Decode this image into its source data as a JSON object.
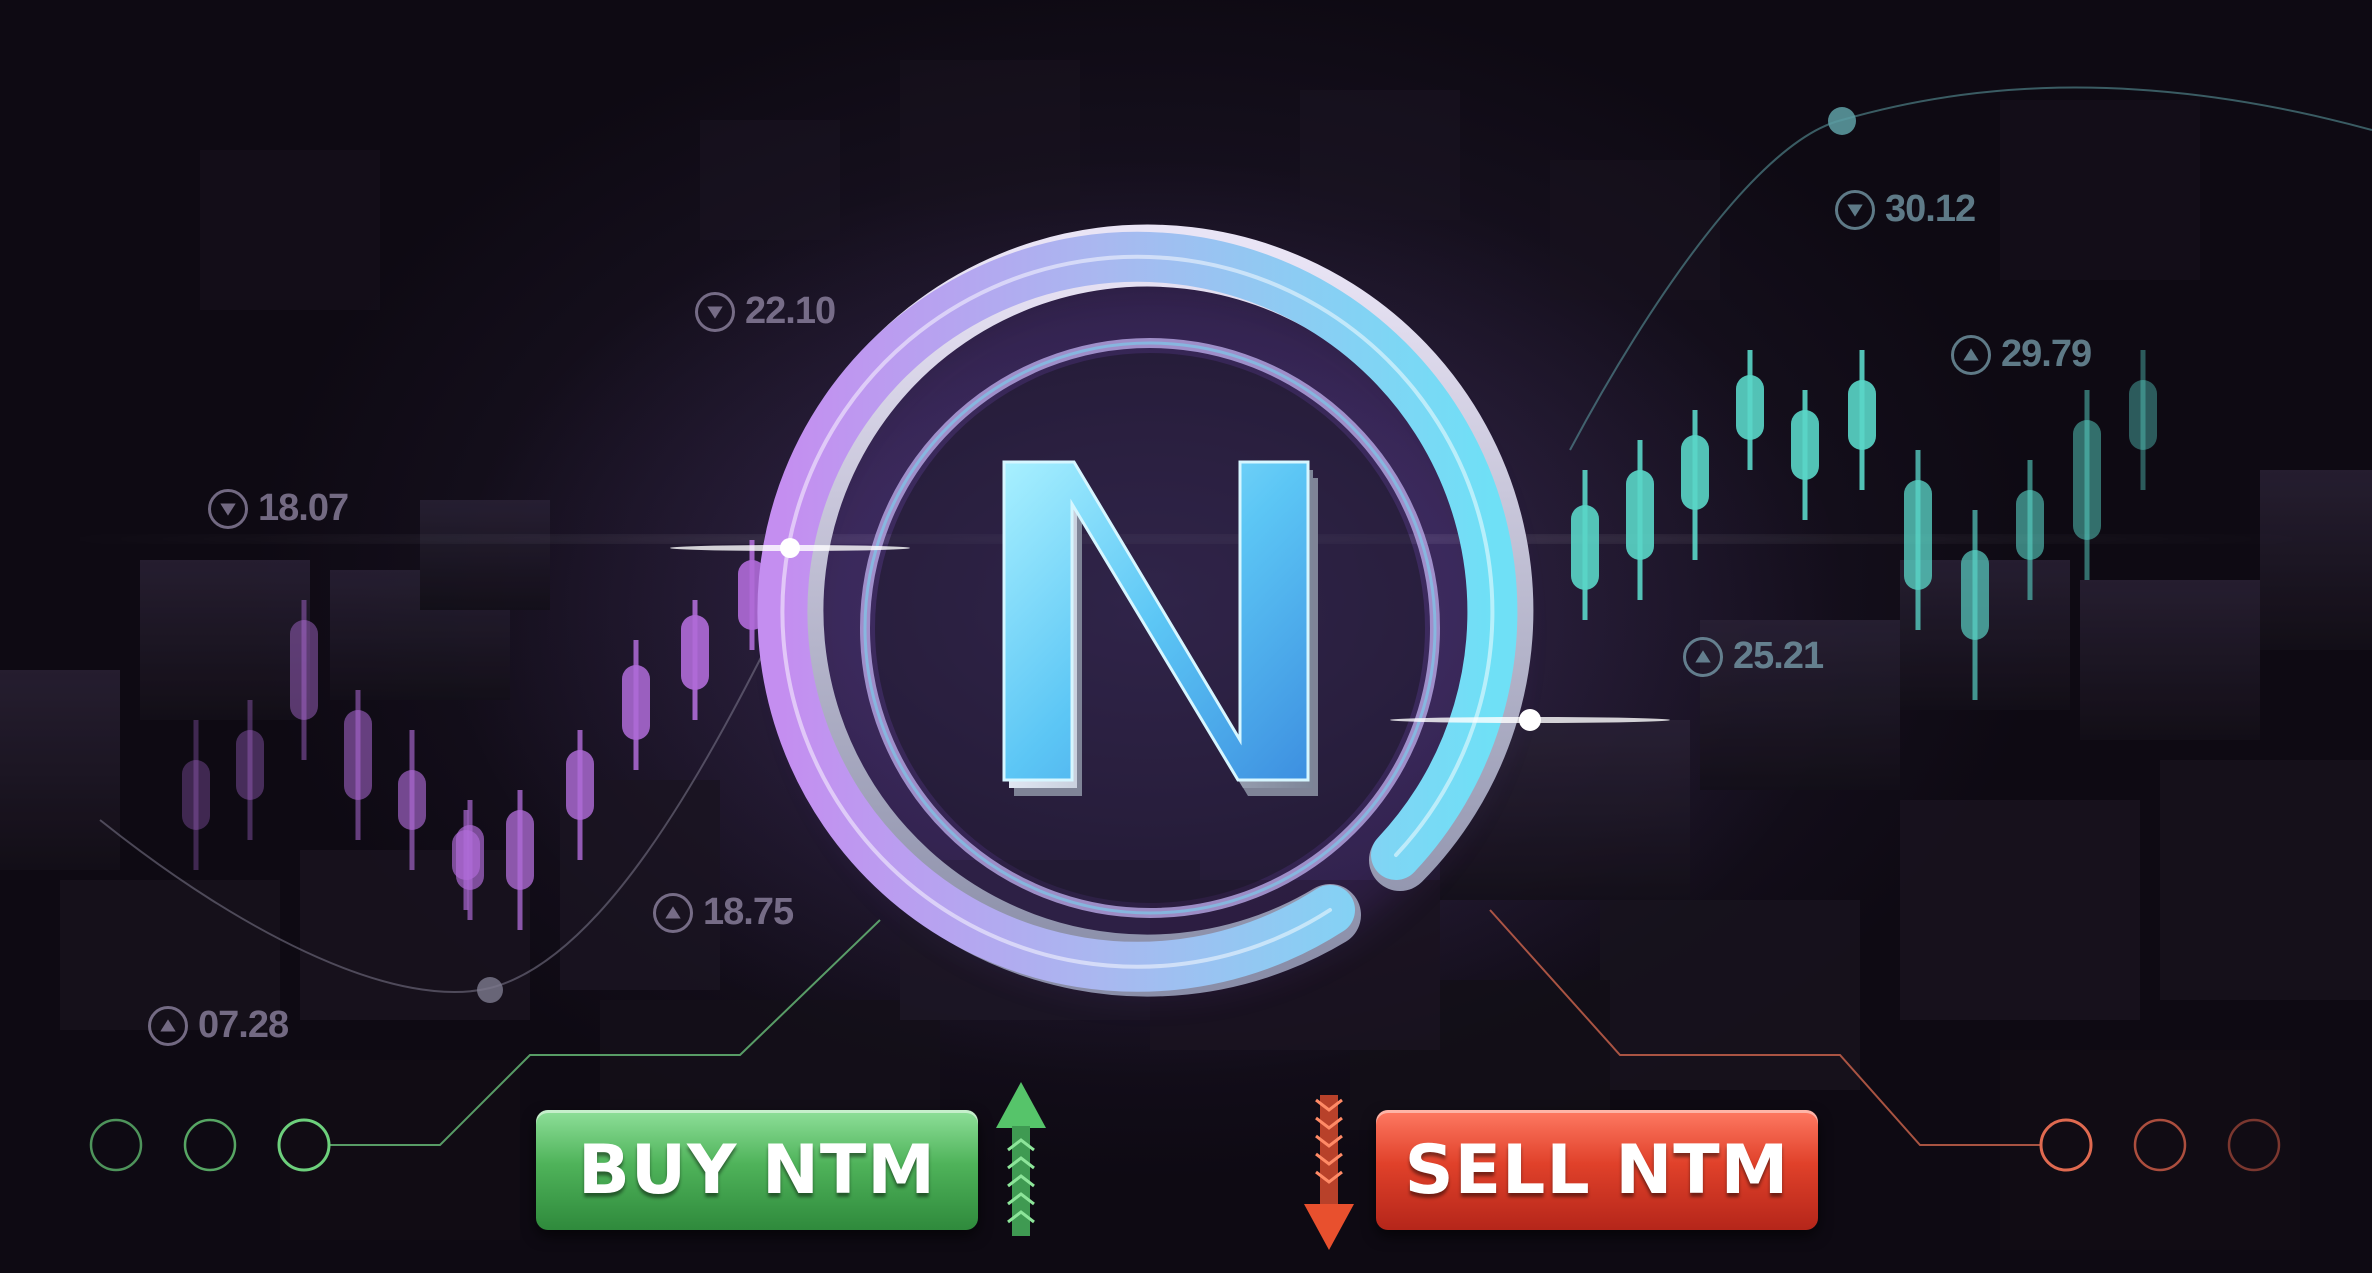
{
  "logo": {
    "letter": "N",
    "icon": "n-circle-logo"
  },
  "buttons": {
    "buy_label": "BUY NTM",
    "sell_label": "SELL NTM"
  },
  "prices": [
    {
      "direction": "down",
      "value": "22.10"
    },
    {
      "direction": "down",
      "value": "18.07"
    },
    {
      "direction": "up",
      "value": "18.75"
    },
    {
      "direction": "up",
      "value": "07.28"
    },
    {
      "direction": "down",
      "value": "30.12"
    },
    {
      "direction": "up",
      "value": "29.79"
    },
    {
      "direction": "up",
      "value": "25.21"
    }
  ],
  "colors": {
    "purple": "#b06cd8",
    "teal": "#5ad6c8",
    "buy_green": "#4fb35a",
    "sell_red": "#e0412a",
    "arrow_up": "#56c46a",
    "arrow_down": "#e8502e"
  }
}
